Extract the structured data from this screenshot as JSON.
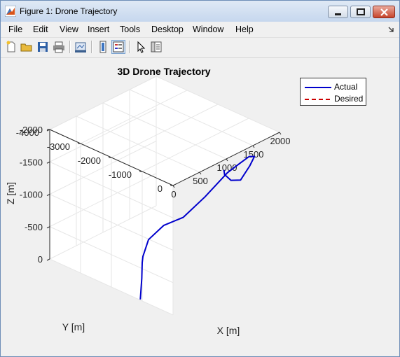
{
  "window": {
    "title": "Figure 1: Drone Trajectory",
    "controls": {
      "minimize": "minimize-icon",
      "maximize": "maximize-icon",
      "close": "close-icon"
    }
  },
  "menubar": {
    "items": [
      "File",
      "Edit",
      "View",
      "Insert",
      "Tools",
      "Desktop",
      "Window",
      "Help"
    ],
    "overflow_icon": "dock-arrow-icon"
  },
  "toolbar": {
    "icons": [
      "new-figure-icon",
      "open-file-icon",
      "save-icon",
      "print-icon",
      "link-plot-icon",
      "colorbar-icon",
      "legend-icon",
      "pointer-icon",
      "property-editor-icon"
    ]
  },
  "colors": {
    "actual": "#0000cc",
    "desired": "#cc0000",
    "grid": "#e6e6e6",
    "axis": "#262626"
  },
  "chart_data": {
    "type": "line",
    "title": "3D Drone Trajectory",
    "xlabel": "X [m]",
    "ylabel": "Y [m]",
    "zlabel": "Z [m]",
    "xlim": [
      0,
      2000
    ],
    "ylim": [
      -4000,
      0
    ],
    "zlim": [
      -2000,
      0
    ],
    "xticks": [
      "0",
      "500",
      "1000",
      "1500",
      "2000"
    ],
    "yticks": [
      "0",
      "-1000",
      "-2000",
      "-3000",
      "-4000"
    ],
    "zticks": [
      "0",
      "-500",
      "-1000",
      "-1500",
      "-2000"
    ],
    "grid": true,
    "legend": {
      "position": "top-right",
      "entries": [
        "Actual",
        "Desired"
      ]
    },
    "series": [
      {
        "name": "Actual",
        "style": "solid",
        "color": "#0000cc",
        "points": [
          [
            14,
            -1085,
            0
          ],
          [
            -3,
            -1008,
            -350
          ],
          [
            -9,
            -984,
            -600
          ],
          [
            -10,
            -960,
            -700
          ],
          [
            28,
            -844,
            -970
          ],
          [
            264,
            -760,
            -1110
          ],
          [
            576,
            -661,
            -1130
          ],
          [
            902,
            -523,
            -1340
          ],
          [
            1262,
            -413,
            -1590
          ],
          [
            1510,
            -418,
            -1640
          ],
          [
            1726,
            -508,
            -1630
          ],
          [
            1892,
            -626,
            -1535
          ],
          [
            1875,
            -750,
            -1370
          ],
          [
            1732,
            -801,
            -1200
          ],
          [
            1577,
            -844,
            -1250
          ],
          [
            1442,
            -817,
            -1400
          ],
          [
            1443,
            -842,
            -1465
          ]
        ]
      },
      {
        "name": "Desired",
        "style": "dashed",
        "color": "#cc0000",
        "points": []
      }
    ]
  }
}
